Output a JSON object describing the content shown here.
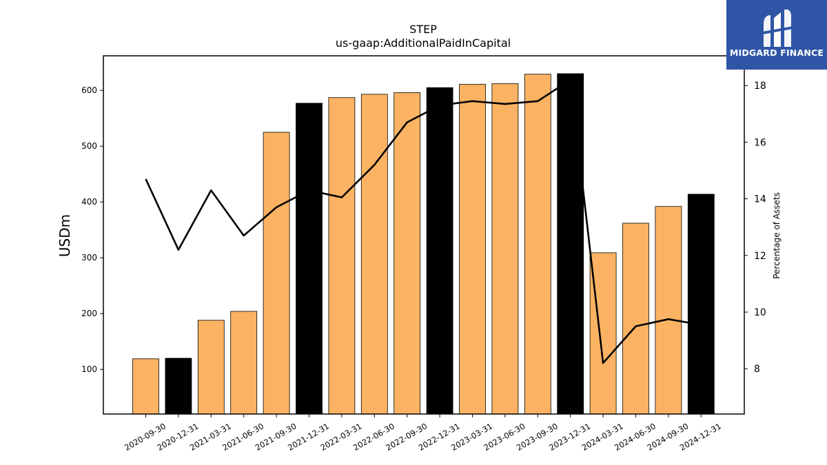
{
  "chart_data": {
    "type": "bar",
    "title": "STEP",
    "subtitle": "us-gaap:AdditionalPaidInCapital",
    "ylabel": "USDm",
    "y2label": "Percentage of Assets",
    "categories": [
      "2020-09-30",
      "2020-12-31",
      "2021-03-31",
      "2021-06-30",
      "2021-09-30",
      "2021-12-31",
      "2022-03-31",
      "2022-06-30",
      "2022-09-30",
      "2022-12-31",
      "2023-03-31",
      "2023-06-30",
      "2023-09-30",
      "2023-12-31",
      "2024-03-31",
      "2024-06-30",
      "2024-09-30",
      "2024-12-31"
    ],
    "series": [
      {
        "values": [
          119,
          120,
          188,
          204,
          525,
          577,
          587,
          593,
          596,
          605,
          611,
          612,
          629,
          630,
          309,
          362,
          392,
          414
        ],
        "colors": [
          "#fbb363",
          "#000000",
          "#fbb363",
          "#fbb363",
          "#fbb363",
          "#000000",
          "#fbb363",
          "#fbb363",
          "#fbb363",
          "#000000",
          "#fbb363",
          "#fbb363",
          "#fbb363",
          "#000000",
          "#fbb363",
          "#fbb363",
          "#fbb363",
          "#000000"
        ]
      },
      {
        "type": "line",
        "axis": "right",
        "color": "#000000",
        "values": [
          14.7,
          12.2,
          14.3,
          12.7,
          13.7,
          14.3,
          14.05,
          15.2,
          16.7,
          17.3,
          17.45,
          17.35,
          17.45,
          18.2,
          8.2,
          9.5,
          9.75,
          9.55
        ]
      }
    ],
    "ylim": [
      20,
      662
    ],
    "y2lim": [
      6.4,
      19.05
    ],
    "yticks": [
      100,
      200,
      300,
      400,
      500,
      600
    ],
    "y2ticks": [
      8,
      10,
      12,
      14,
      16,
      18
    ],
    "grid": false,
    "legend": "none"
  },
  "logo": {
    "text": "MIDGARD FINANCE",
    "bg_color": "#2f56a6"
  }
}
